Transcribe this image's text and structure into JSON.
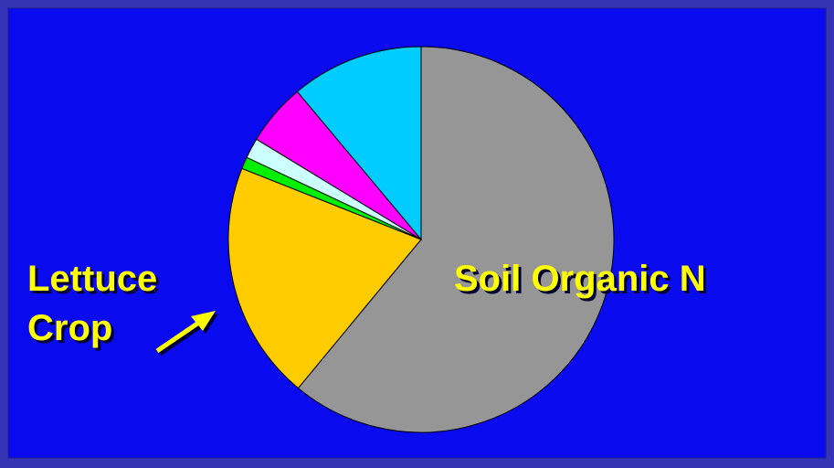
{
  "chart_data": {
    "type": "pie",
    "categories": [
      null,
      null,
      null,
      null,
      null,
      null
    ],
    "values": [
      61,
      20,
      1,
      1.7,
      5.2,
      11.1
    ],
    "colors": [
      "#969696",
      "#ffcc00",
      "#00ee00",
      "#ccffff",
      "#ff00ff",
      "#00ccff"
    ],
    "annotations": [
      [
        "Lettuce",
        "Crop"
      ],
      [
        "Soil Organic N"
      ]
    ]
  }
}
